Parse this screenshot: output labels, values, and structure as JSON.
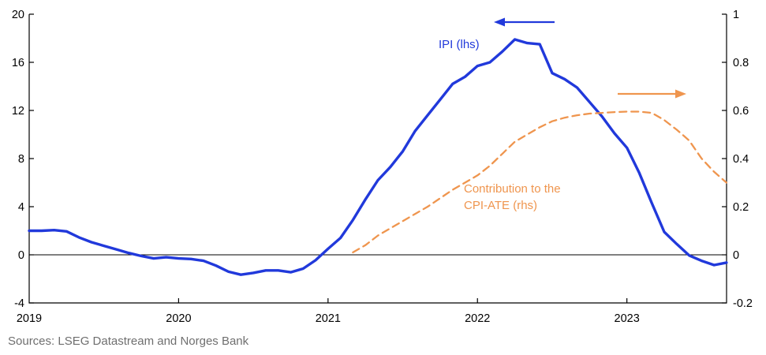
{
  "source_note": "Sources: LSEG Datastream and Norges Bank",
  "chart_data": {
    "type": "line",
    "title": "",
    "xlabel": "",
    "ylabel_left": "",
    "ylabel_right": "",
    "grid": "off",
    "zero_baseline": true,
    "x_axis": {
      "tick_years": [
        2019,
        2020,
        2021,
        2022,
        2023
      ],
      "tick_labels": [
        "2019",
        "2020",
        "2021",
        "2022",
        "2023"
      ],
      "range": [
        2019.0,
        2023.667
      ]
    },
    "left_axis": {
      "ticks": [
        -4,
        0,
        4,
        8,
        12,
        16,
        20
      ],
      "range": [
        -4,
        20
      ]
    },
    "right_axis": {
      "ticks": [
        -0.2,
        0,
        0.2,
        0.4,
        0.6,
        0.8,
        1
      ],
      "range": [
        -0.2,
        1
      ]
    },
    "series": [
      {
        "name": "IPI (lhs)",
        "axis": "left",
        "color": "#2139db",
        "line_style": "solid",
        "line_width": 3.4,
        "start_year": 2019.0,
        "interval_months": 1,
        "values": [
          2.0,
          2.0,
          2.05,
          1.95,
          1.45,
          1.05,
          0.75,
          0.45,
          0.15,
          -0.1,
          -0.3,
          -0.2,
          -0.3,
          -0.35,
          -0.5,
          -0.9,
          -1.4,
          -1.65,
          -1.5,
          -1.3,
          -1.3,
          -1.45,
          -1.15,
          -0.45,
          0.5,
          1.4,
          2.9,
          4.6,
          6.2,
          7.3,
          8.6,
          10.3,
          11.6,
          12.9,
          14.2,
          14.8,
          15.7,
          16.0,
          16.9,
          17.9,
          17.6,
          17.5,
          15.1,
          14.6,
          13.9,
          12.7,
          11.5,
          10.1,
          8.9,
          6.8,
          4.3,
          1.9,
          0.9,
          -0.05,
          -0.5,
          -0.85,
          -0.65
        ]
      },
      {
        "name": "Contribution to the CPI-ATE (rhs)",
        "axis": "right",
        "color": "#ef954e",
        "line_style": "dashed",
        "line_width": 2.3,
        "start_year": 2021.1667,
        "interval_months": 1,
        "values": [
          0.01,
          0.04,
          0.08,
          0.11,
          0.14,
          0.17,
          0.2,
          0.235,
          0.27,
          0.3,
          0.33,
          0.37,
          0.42,
          0.47,
          0.5,
          0.53,
          0.555,
          0.57,
          0.58,
          0.587,
          0.59,
          0.593,
          0.595,
          0.595,
          0.59,
          0.56,
          0.52,
          0.475,
          0.4,
          0.345,
          0.3
        ]
      }
    ],
    "annotations": {
      "ipi_label": "IPI (lhs)",
      "contribution_label_line1": "Contribution to the",
      "contribution_label_line2": "CPI-ATE (rhs)",
      "lhs_arrow_direction": "left",
      "rhs_arrow_direction": "right"
    }
  }
}
